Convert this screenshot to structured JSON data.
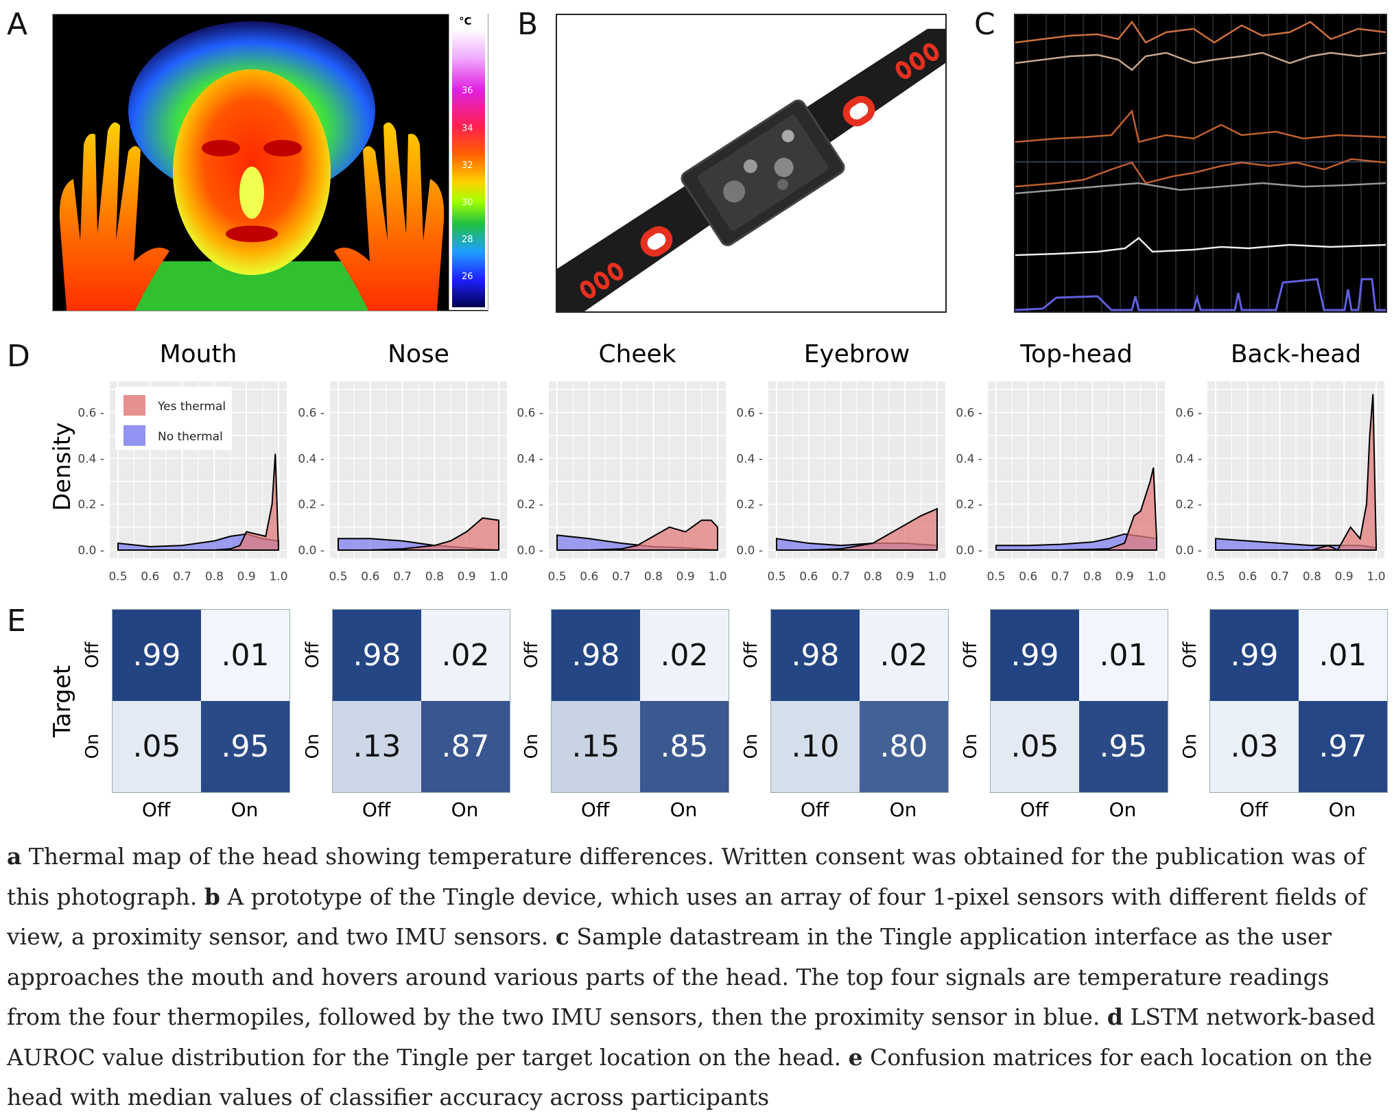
{
  "panels": {
    "a": "A",
    "b": "B",
    "c": "C",
    "d": "D",
    "e": "E"
  },
  "colorbar": {
    "unit": "°C",
    "ticks": [
      "36",
      "34",
      "32",
      "30",
      "28",
      "26"
    ]
  },
  "density": {
    "ylabel": "Density",
    "yticks": [
      "0.6",
      "0.4",
      "0.2",
      "0.0"
    ],
    "xticks": [
      "0.5",
      "0.6",
      "0.7",
      "0.8",
      "0.9",
      "1.0"
    ],
    "legend": [
      {
        "label": "Yes thermal",
        "color": "#e27c7c"
      },
      {
        "label": "No thermal",
        "color": "#7f7ff0"
      }
    ],
    "titles": [
      "Mouth",
      "Nose",
      "Cheek",
      "Eyebrow",
      "Top-head",
      "Back-head"
    ]
  },
  "chart_data": {
    "type": "area",
    "ylabel": "Density",
    "xlim": [
      0.5,
      1.0
    ],
    "ylim": [
      0,
      0.7
    ],
    "panels": [
      {
        "title": "Mouth",
        "series": [
          {
            "name": "Yes thermal",
            "x": [
              0.5,
              0.6,
              0.7,
              0.8,
              0.85,
              0.88,
              0.9,
              0.93,
              0.96,
              0.98,
              0.99,
              1.0
            ],
            "y": [
              0,
              0,
              0,
              0,
              0.005,
              0.02,
              0.08,
              0.07,
              0.06,
              0.2,
              0.42,
              0.0
            ]
          },
          {
            "name": "No thermal",
            "x": [
              0.5,
              0.6,
              0.7,
              0.8,
              0.85,
              0.9,
              0.95,
              1.0
            ],
            "y": [
              0.03,
              0.015,
              0.02,
              0.04,
              0.06,
              0.07,
              0.05,
              0.04
            ]
          }
        ]
      },
      {
        "title": "Nose",
        "series": [
          {
            "name": "Yes thermal",
            "x": [
              0.5,
              0.6,
              0.7,
              0.8,
              0.85,
              0.9,
              0.95,
              1.0
            ],
            "y": [
              0,
              0,
              0.005,
              0.02,
              0.04,
              0.08,
              0.14,
              0.13
            ]
          },
          {
            "name": "No thermal",
            "x": [
              0.5,
              0.6,
              0.7,
              0.8,
              0.9,
              1.0
            ],
            "y": [
              0.05,
              0.05,
              0.04,
              0.02,
              0.01,
              0.0
            ]
          }
        ]
      },
      {
        "title": "Cheek",
        "series": [
          {
            "name": "Yes thermal",
            "x": [
              0.5,
              0.6,
              0.7,
              0.75,
              0.8,
              0.85,
              0.9,
              0.95,
              0.98,
              1.0
            ],
            "y": [
              0,
              0,
              0.005,
              0.02,
              0.06,
              0.1,
              0.08,
              0.13,
              0.13,
              0.1
            ]
          },
          {
            "name": "No thermal",
            "x": [
              0.5,
              0.6,
              0.7,
              0.8,
              0.9,
              1.0
            ],
            "y": [
              0.065,
              0.05,
              0.03,
              0.015,
              0.01,
              0.0
            ]
          }
        ]
      },
      {
        "title": "Eyebrow",
        "series": [
          {
            "name": "Yes thermal",
            "x": [
              0.5,
              0.6,
              0.7,
              0.8,
              0.85,
              0.9,
              0.95,
              1.0
            ],
            "y": [
              0,
              0,
              0.005,
              0.03,
              0.07,
              0.11,
              0.15,
              0.18
            ]
          },
          {
            "name": "No thermal",
            "x": [
              0.5,
              0.6,
              0.7,
              0.8,
              0.9,
              1.0
            ],
            "y": [
              0.05,
              0.03,
              0.02,
              0.03,
              0.03,
              0.02
            ]
          }
        ]
      },
      {
        "title": "Top-head",
        "series": [
          {
            "name": "Yes thermal",
            "x": [
              0.5,
              0.7,
              0.85,
              0.9,
              0.93,
              0.95,
              0.98,
              0.99,
              1.0
            ],
            "y": [
              0,
              0,
              0.005,
              0.03,
              0.15,
              0.17,
              0.3,
              0.36,
              0.05
            ]
          },
          {
            "name": "No thermal",
            "x": [
              0.5,
              0.6,
              0.7,
              0.8,
              0.85,
              0.9,
              0.95,
              1.0
            ],
            "y": [
              0.02,
              0.02,
              0.025,
              0.035,
              0.05,
              0.07,
              0.06,
              0.05
            ]
          }
        ]
      },
      {
        "title": "Back-head",
        "series": [
          {
            "name": "Yes thermal",
            "x": [
              0.5,
              0.8,
              0.85,
              0.88,
              0.9,
              0.92,
              0.95,
              0.97,
              0.98,
              0.99,
              1.0
            ],
            "y": [
              0,
              0,
              0.02,
              0.0,
              0.05,
              0.1,
              0.05,
              0.2,
              0.5,
              0.68,
              0.02
            ]
          },
          {
            "name": "No thermal",
            "x": [
              0.5,
              0.6,
              0.7,
              0.8,
              0.9,
              0.95,
              1.0
            ],
            "y": [
              0.05,
              0.04,
              0.03,
              0.02,
              0.02,
              0.02,
              0.01
            ]
          }
        ]
      }
    ]
  },
  "confusion": {
    "ylabel": "Target",
    "row_labels": [
      "Off",
      "On"
    ],
    "col_labels": [
      "Off",
      "On"
    ],
    "matrices": [
      {
        "title": "Mouth",
        "cells": [
          ".99",
          ".01",
          ".05",
          ".95"
        ],
        "values": [
          0.99,
          0.01,
          0.05,
          0.95
        ]
      },
      {
        "title": "Nose",
        "cells": [
          ".98",
          ".02",
          ".13",
          ".87"
        ],
        "values": [
          0.98,
          0.02,
          0.13,
          0.87
        ]
      },
      {
        "title": "Cheek",
        "cells": [
          ".98",
          ".02",
          ".15",
          ".85"
        ],
        "values": [
          0.98,
          0.02,
          0.15,
          0.85
        ]
      },
      {
        "title": "Eyebrow",
        "cells": [
          ".98",
          ".02",
          ".10",
          ".80"
        ],
        "values": [
          0.98,
          0.02,
          0.1,
          0.8
        ]
      },
      {
        "title": "Top-head",
        "cells": [
          ".99",
          ".01",
          ".05",
          ".95"
        ],
        "values": [
          0.99,
          0.01,
          0.05,
          0.95
        ]
      },
      {
        "title": "Back-head",
        "cells": [
          ".99",
          ".01",
          ".03",
          ".97"
        ],
        "values": [
          0.99,
          0.01,
          0.03,
          0.97
        ]
      }
    ]
  },
  "caption": {
    "a_tag": "a",
    "a_text": " Thermal map of the head showing temperature differences. Written consent was obtained for the publication was of this photograph. ",
    "b_tag": "b",
    "b_text": " A prototype of the Tingle device, which uses an array of four 1-pixel sensors with different fields of view, a proximity sensor, and two IMU sensors. ",
    "c_tag": "c",
    "c_text": " Sample datastream in the Tingle application interface as the user approaches the mouth and hovers around various parts of the head. The top four signals are temperature readings from the four thermopiles, followed by the two IMU sensors, then the proximity sensor in blue. ",
    "d_tag": "d",
    "d_text": " LSTM network-based AUROC value distribution for the Tingle per target location on the head. ",
    "e_tag": "e",
    "e_text": " Confusion matrices for each location on the head with median values of classifier accuracy across participants"
  }
}
